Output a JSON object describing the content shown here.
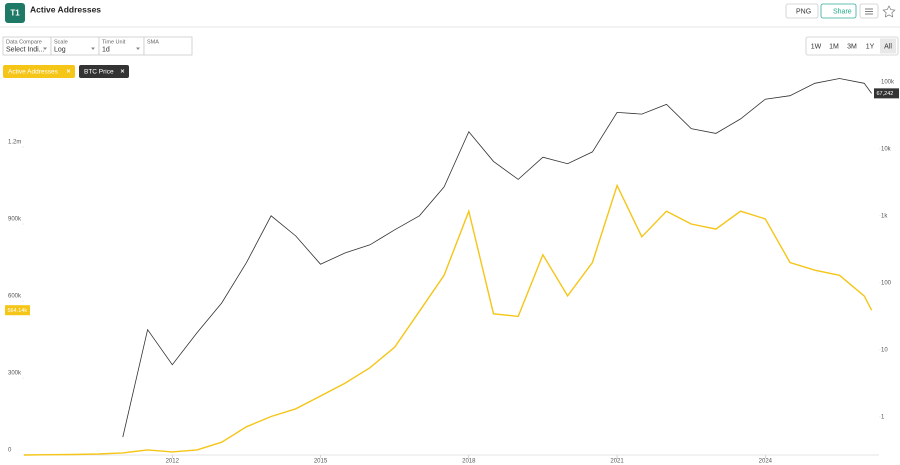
{
  "ui": {
    "logo": "T1",
    "title": "Active Addresses",
    "buttons": [
      "PNG",
      "Share"
    ],
    "controls": [
      {
        "label": "Data Compare",
        "value": "Select Indi..."
      },
      {
        "label": "Scale",
        "value": "Log"
      },
      {
        "label": "Time Unit",
        "value": "1d"
      },
      {
        "label": "SMA",
        "value": ""
      }
    ],
    "ranges": [
      "1W",
      "1M",
      "3M",
      "1Y",
      "All"
    ]
  },
  "chart_data": {
    "type": "line",
    "x": [
      2009.0,
      2009.5,
      2010.0,
      2010.5,
      2011.0,
      2011.5,
      2012.0,
      2012.5,
      2013.0,
      2013.5,
      2014.0,
      2014.5,
      2015.0,
      2015.5,
      2016.0,
      2016.5,
      2017.0,
      2017.5,
      2018.0,
      2018.5,
      2019.0,
      2019.5,
      2020.0,
      2020.5,
      2021.0,
      2021.5,
      2022.0,
      2022.5,
      2023.0,
      2023.5,
      2024.0,
      2024.5,
      2025.0,
      2025.5,
      2026.0,
      2026.15
    ],
    "series": [
      {
        "name": "Active Addresses",
        "color": "#f5c518",
        "current_label": "564.14k",
        "values": [
          0,
          1000,
          2000,
          4000,
          8000,
          20000,
          12000,
          20000,
          50000,
          110000,
          150000,
          180000,
          230000,
          280000,
          340000,
          420000,
          560000,
          700000,
          950000,
          550000,
          540000,
          780000,
          620000,
          750000,
          1050000,
          850000,
          950000,
          900000,
          880000,
          950000,
          920000,
          750000,
          720000,
          700000,
          620000,
          564140
        ]
      },
      {
        "name": "BTC Price",
        "color": "#333333",
        "axis": "y2",
        "current_label": "67,242",
        "values": [
          null,
          null,
          null,
          null,
          0.5,
          20,
          6,
          18,
          50,
          200,
          1000,
          500,
          190,
          280,
          370,
          620,
          1000,
          2700,
          18000,
          6500,
          3500,
          7500,
          6000,
          9000,
          35000,
          33000,
          46000,
          20000,
          17000,
          28000,
          55000,
          62000,
          95000,
          112000,
          95000,
          67242
        ]
      }
    ],
    "xlim": [
      2009.0,
      2026.3
    ],
    "xticks": [
      2012,
      2015,
      2018,
      2021,
      2024
    ],
    "ylim": [
      0,
      1500000
    ],
    "yticks": [
      0,
      {
        "value": 300000,
        "label": "300k"
      },
      {
        "value": 600000,
        "label": "600k"
      },
      {
        "value": 900000,
        "label": "900k"
      },
      {
        "value": 1200000,
        "label": "1.2m"
      }
    ],
    "y2lim": [
      0.27,
      150000
    ],
    "y2_log": true,
    "y2ticks": [
      1,
      10,
      100,
      {
        "value": 1000,
        "label": "1k"
      },
      {
        "value": 10000,
        "label": "10k"
      },
      {
        "value": 100000,
        "label": "100k"
      }
    ]
  }
}
